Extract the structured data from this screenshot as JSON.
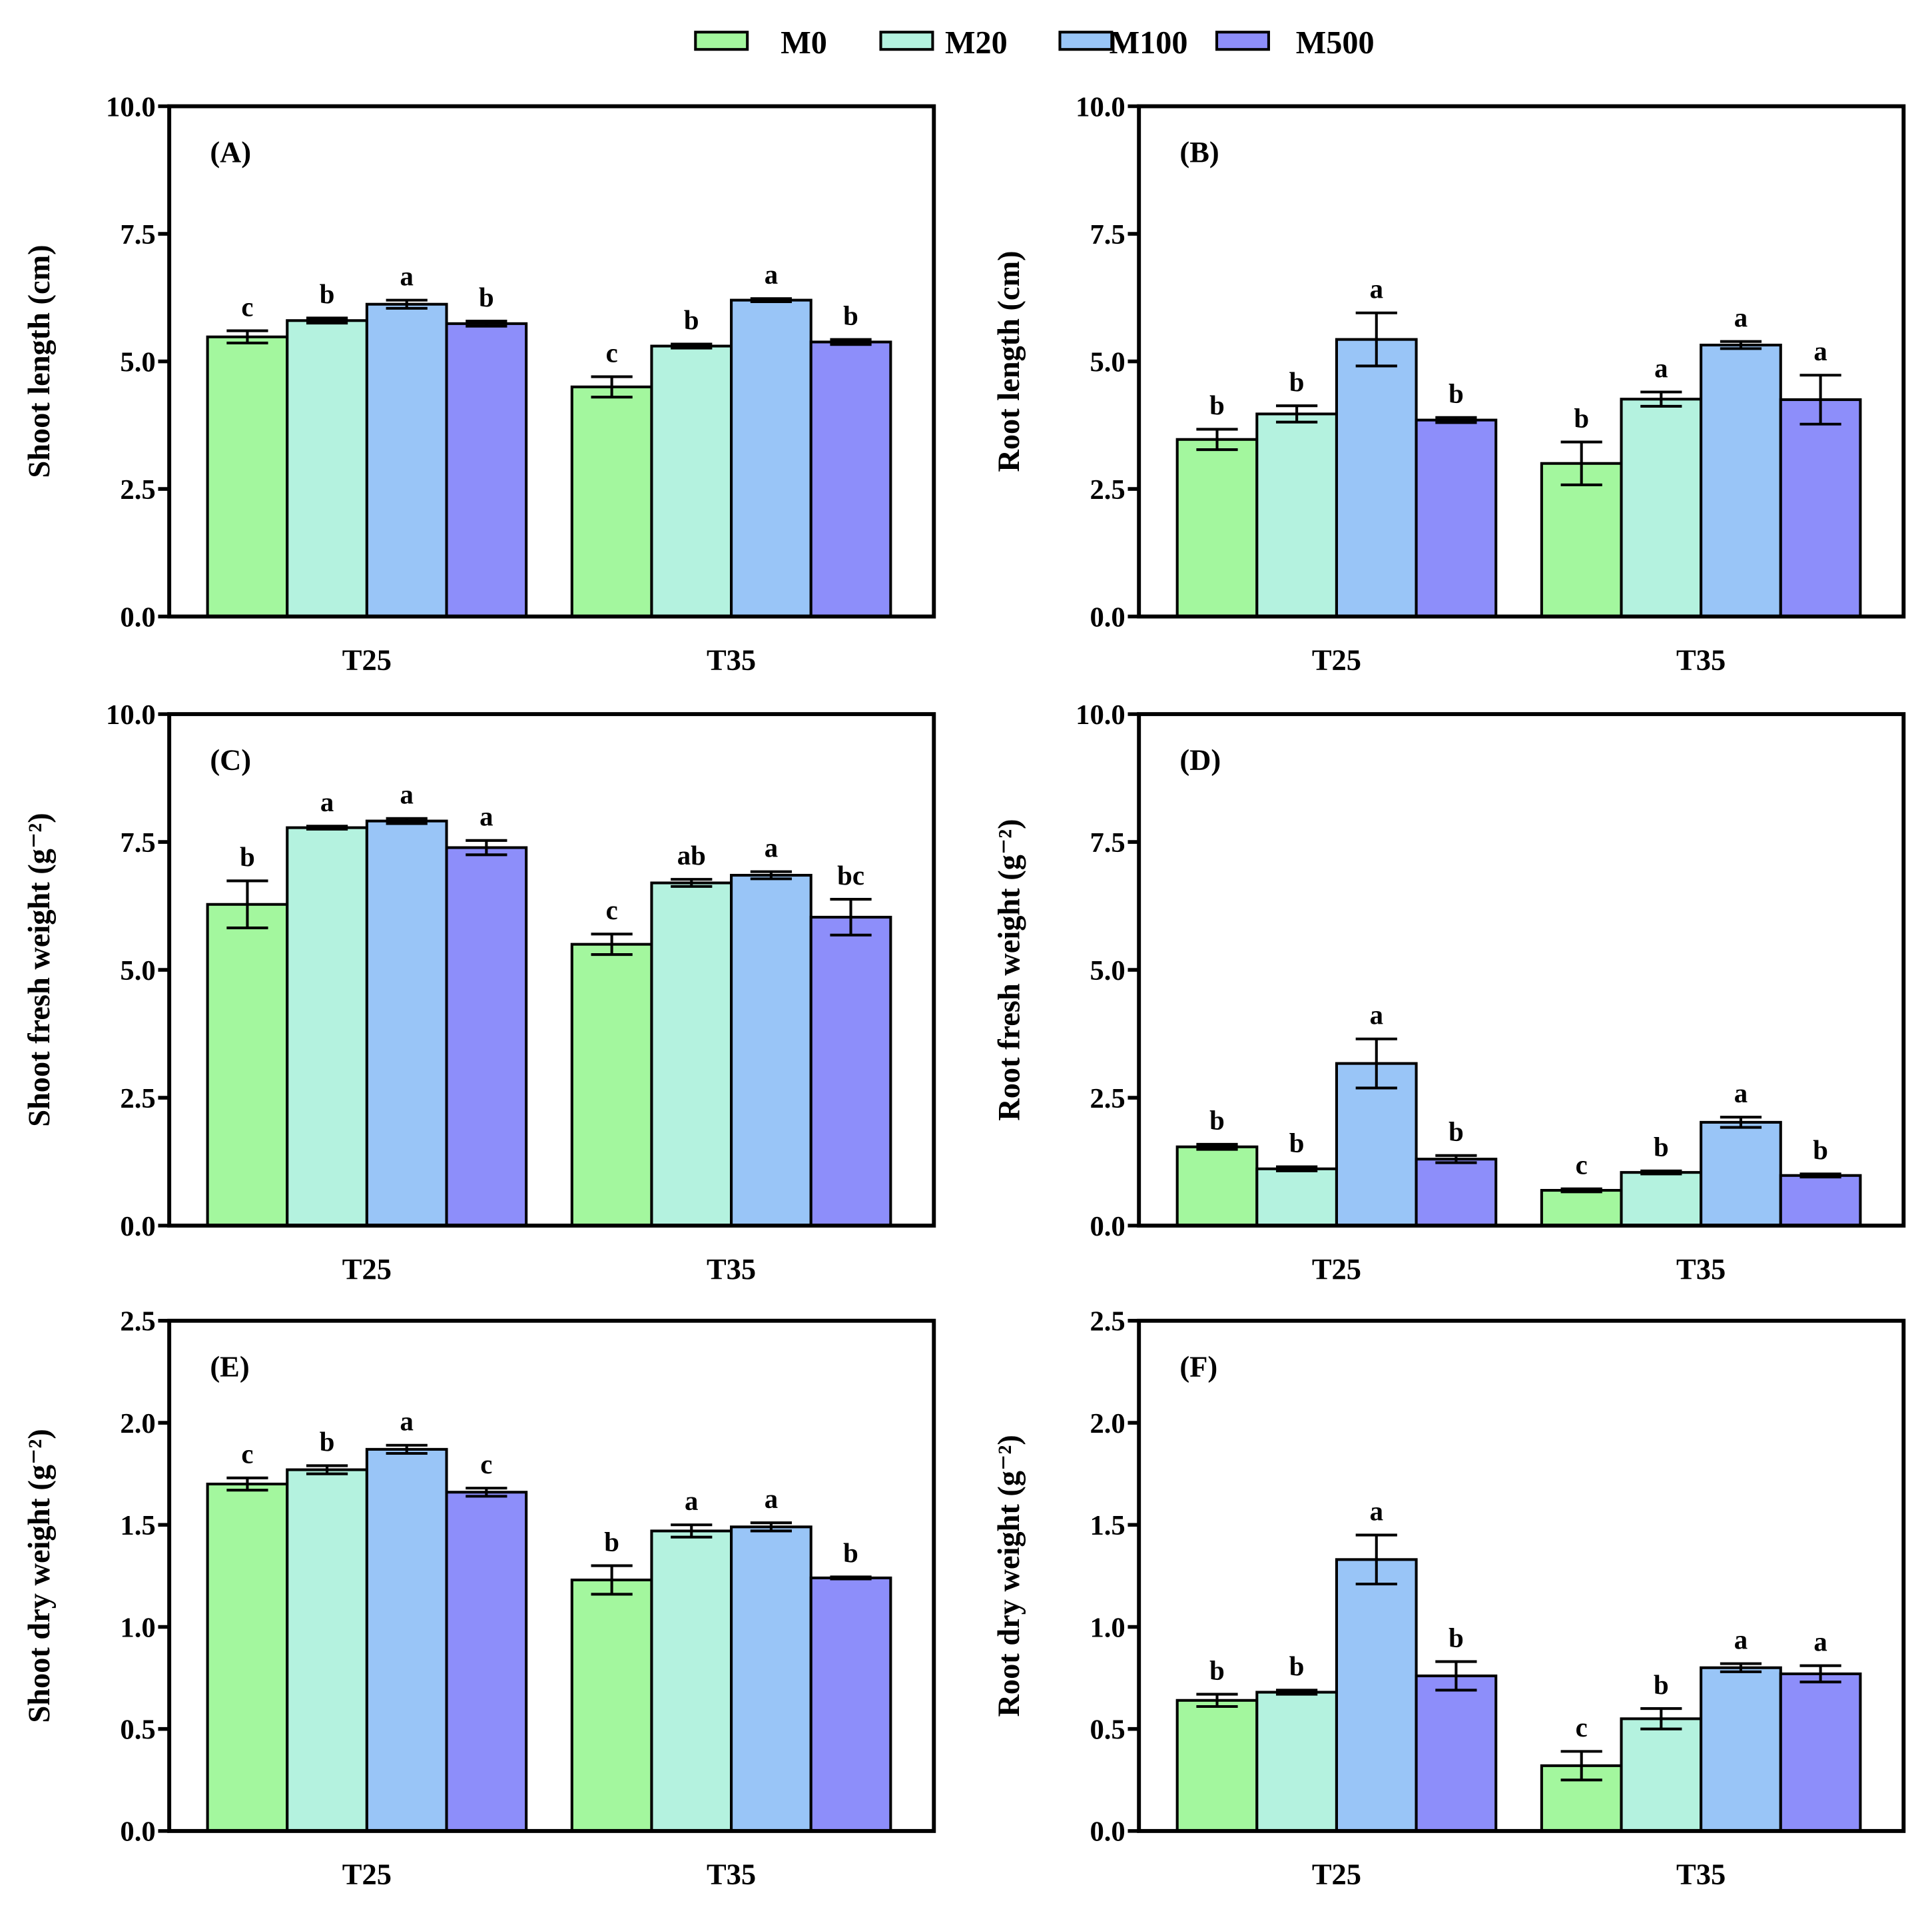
{
  "legend": [
    {
      "label": "M0",
      "color": "#a3f79e"
    },
    {
      "label": "M20",
      "color": "#b4f2df"
    },
    {
      "label": "M100",
      "color": "#99c5f7"
    },
    {
      "label": "M500",
      "color": "#8d8efa"
    }
  ],
  "chart_data": [
    {
      "type": "bar",
      "title": "(A)",
      "xlabel": "",
      "ylabel": "Shoot  length (cm)",
      "categories": [
        "T25",
        "T35"
      ],
      "ylim": [
        0,
        10
      ],
      "yticks": [
        "0.0",
        "2.5",
        "5.0",
        "7.5",
        "10.0"
      ],
      "series": [
        {
          "name": "M0",
          "values": [
            5.48,
            4.5
          ],
          "errors": [
            0.12,
            0.2
          ],
          "letters": [
            "c",
            "c"
          ]
        },
        {
          "name": "M20",
          "values": [
            5.8,
            5.3
          ],
          "errors": [
            0.05,
            0.04
          ],
          "letters": [
            "b",
            "b"
          ]
        },
        {
          "name": "M100",
          "values": [
            6.12,
            6.2
          ],
          "errors": [
            0.08,
            0.03
          ],
          "letters": [
            "a",
            "a"
          ]
        },
        {
          "name": "M500",
          "values": [
            5.74,
            5.38
          ],
          "errors": [
            0.05,
            0.05
          ],
          "letters": [
            "b",
            "b"
          ]
        }
      ]
    },
    {
      "type": "bar",
      "title": "(B)",
      "xlabel": "",
      "ylabel": "Root  length (cm)",
      "categories": [
        "T25",
        "T35"
      ],
      "ylim": [
        0,
        10
      ],
      "yticks": [
        "0.0",
        "2.5",
        "5.0",
        "7.5",
        "10.0"
      ],
      "series": [
        {
          "name": "M0",
          "values": [
            3.47,
            3.0
          ],
          "errors": [
            0.2,
            0.42
          ],
          "letters": [
            "b",
            "b"
          ]
        },
        {
          "name": "M20",
          "values": [
            3.97,
            4.26
          ],
          "errors": [
            0.16,
            0.14
          ],
          "letters": [
            "b",
            "a"
          ]
        },
        {
          "name": "M100",
          "values": [
            5.43,
            5.32
          ],
          "errors": [
            0.52,
            0.07
          ],
          "letters": [
            "a",
            "a"
          ]
        },
        {
          "name": "M500",
          "values": [
            3.85,
            4.25
          ],
          "errors": [
            0.05,
            0.48
          ],
          "letters": [
            "b",
            "a"
          ]
        }
      ]
    },
    {
      "type": "bar",
      "title": "(C)",
      "xlabel": "",
      "ylabel": "Shoot fresh weight (g⁻²)",
      "categories": [
        "T25",
        "T35"
      ],
      "ylim": [
        0,
        10
      ],
      "yticks": [
        "0.0",
        "2.5",
        "5.0",
        "7.5",
        "10.0"
      ],
      "series": [
        {
          "name": "M0",
          "values": [
            6.28,
            5.5
          ],
          "errors": [
            0.46,
            0.2
          ],
          "letters": [
            "b",
            "c"
          ]
        },
        {
          "name": "M20",
          "values": [
            7.78,
            6.7
          ],
          "errors": [
            0.03,
            0.07
          ],
          "letters": [
            "a",
            "ab"
          ]
        },
        {
          "name": "M100",
          "values": [
            7.91,
            6.85
          ],
          "errors": [
            0.05,
            0.07
          ],
          "letters": [
            "a",
            "a"
          ]
        },
        {
          "name": "M500",
          "values": [
            7.39,
            6.03
          ],
          "errors": [
            0.14,
            0.35
          ],
          "letters": [
            "a",
            "bc"
          ]
        }
      ]
    },
    {
      "type": "bar",
      "title": "(D)",
      "xlabel": "",
      "ylabel": "Root fresh weight (g⁻²)",
      "categories": [
        "T25",
        "T35"
      ],
      "ylim": [
        0,
        10
      ],
      "yticks": [
        "0.0",
        "2.5",
        "5.0",
        "7.5",
        "10.0"
      ],
      "series": [
        {
          "name": "M0",
          "values": [
            1.54,
            0.69
          ],
          "errors": [
            0.05,
            0.03
          ],
          "letters": [
            "b",
            "c"
          ]
        },
        {
          "name": "M20",
          "values": [
            1.11,
            1.04
          ],
          "errors": [
            0.04,
            0.03
          ],
          "letters": [
            "b",
            "b"
          ]
        },
        {
          "name": "M100",
          "values": [
            3.17,
            2.02
          ],
          "errors": [
            0.48,
            0.1
          ],
          "letters": [
            "a",
            "a"
          ]
        },
        {
          "name": "M500",
          "values": [
            1.3,
            0.98
          ],
          "errors": [
            0.07,
            0.03
          ],
          "letters": [
            "b",
            "b"
          ]
        }
      ]
    },
    {
      "type": "bar",
      "title": "(E)",
      "xlabel": "",
      "ylabel": "Shoot dry weight (g⁻²)",
      "categories": [
        "T25",
        "T35"
      ],
      "ylim": [
        0,
        2.5
      ],
      "yticks": [
        "0.0",
        "0.5",
        "1.0",
        "1.5",
        "2.0",
        "2.5"
      ],
      "series": [
        {
          "name": "M0",
          "values": [
            1.7,
            1.23
          ],
          "errors": [
            0.03,
            0.07
          ],
          "letters": [
            "c",
            "b"
          ]
        },
        {
          "name": "M20",
          "values": [
            1.77,
            1.47
          ],
          "errors": [
            0.02,
            0.03
          ],
          "letters": [
            "b",
            "a"
          ]
        },
        {
          "name": "M100",
          "values": [
            1.87,
            1.49
          ],
          "errors": [
            0.02,
            0.02
          ],
          "letters": [
            "a",
            "a"
          ]
        },
        {
          "name": "M500",
          "values": [
            1.66,
            1.24
          ],
          "errors": [
            0.02,
            0.005
          ],
          "letters": [
            "c",
            "b"
          ]
        }
      ]
    },
    {
      "type": "bar",
      "title": "(F)",
      "xlabel": "",
      "ylabel": "Root dry weight (g⁻²)",
      "categories": [
        "T25",
        "T35"
      ],
      "ylim": [
        0,
        2.5
      ],
      "yticks": [
        "0.0",
        "0.5",
        "1.0",
        "1.5",
        "2.0",
        "2.5"
      ],
      "series": [
        {
          "name": "M0",
          "values": [
            0.64,
            0.32
          ],
          "errors": [
            0.03,
            0.07
          ],
          "letters": [
            "b",
            "c"
          ]
        },
        {
          "name": "M20",
          "values": [
            0.68,
            0.55
          ],
          "errors": [
            0.01,
            0.05
          ],
          "letters": [
            "b",
            "b"
          ]
        },
        {
          "name": "M100",
          "values": [
            1.33,
            0.8
          ],
          "errors": [
            0.12,
            0.02
          ],
          "letters": [
            "a",
            "a"
          ]
        },
        {
          "name": "M500",
          "values": [
            0.76,
            0.77
          ],
          "errors": [
            0.07,
            0.04
          ],
          "letters": [
            "b",
            "a"
          ]
        }
      ]
    }
  ]
}
